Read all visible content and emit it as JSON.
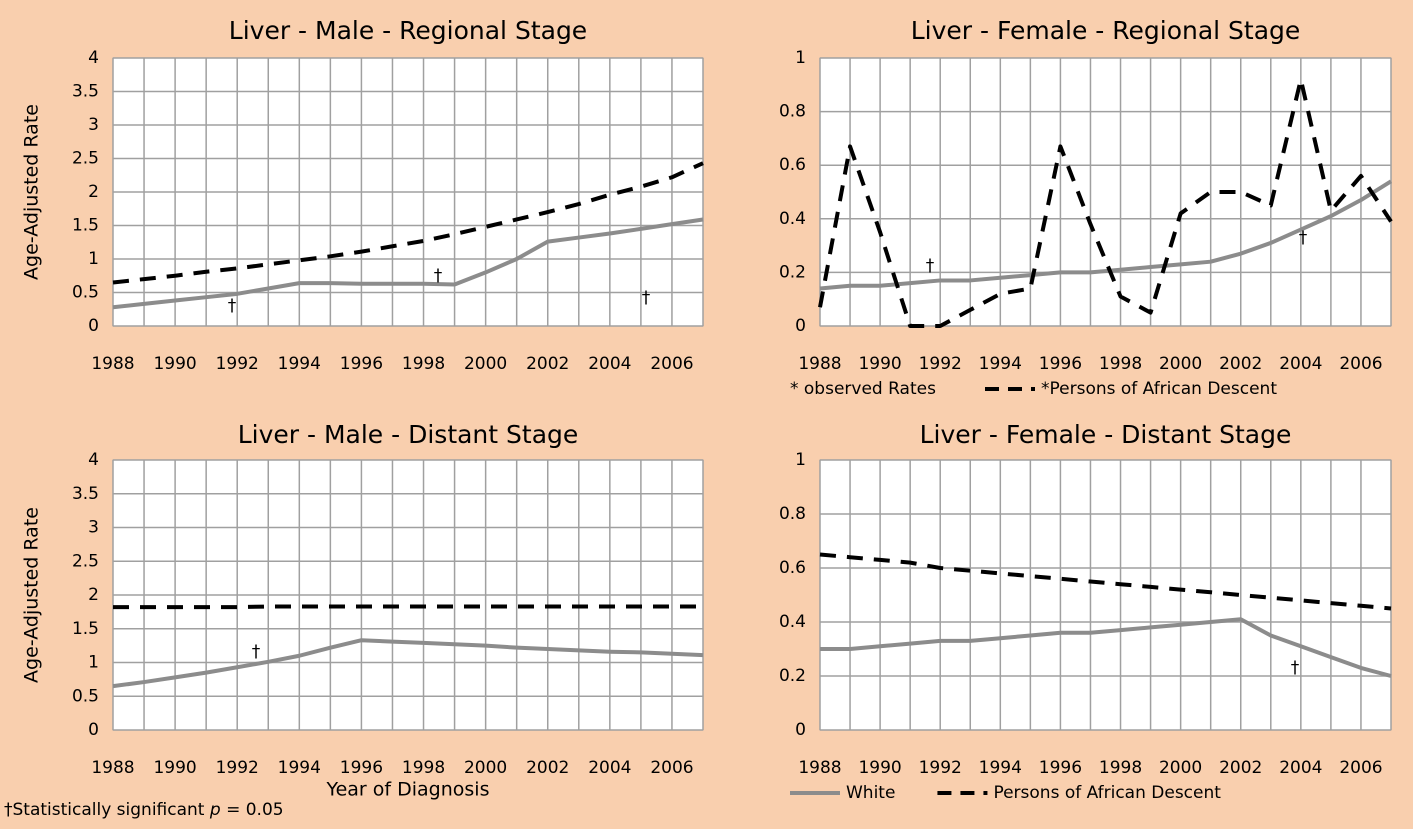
{
  "chart_data": [
    {
      "type": "line",
      "title": "Liver - Male - Regional Stage",
      "ylabel": "Age-Adjusted Rate",
      "x": [
        1988,
        1989,
        1990,
        1991,
        1992,
        1993,
        1994,
        1995,
        1996,
        1997,
        1998,
        1999,
        2000,
        2001,
        2002,
        2003,
        2004,
        2005,
        2006,
        2007
      ],
      "xlim": [
        1988,
        2007
      ],
      "xticks": [
        1988,
        1990,
        1992,
        1994,
        1996,
        1998,
        2000,
        2002,
        2004,
        2006
      ],
      "ylim": [
        0,
        4
      ],
      "yticks": [
        0,
        0.5,
        1,
        1.5,
        2,
        2.5,
        3,
        3.5,
        4
      ],
      "grid": true,
      "series": [
        {
          "color": "#8c8c8c",
          "style": "solid",
          "values": [
            0.28,
            0.33,
            0.38,
            0.43,
            0.48,
            0.56,
            0.64,
            0.64,
            0.63,
            0.63,
            0.63,
            0.62,
            0.8,
            1.0,
            1.26,
            1.32,
            1.38,
            1.45,
            1.52,
            1.59
          ]
        },
        {
          "color": "#000000",
          "style": "dashed",
          "values": [
            0.65,
            0.7,
            0.75,
            0.81,
            0.86,
            0.92,
            0.98,
            1.04,
            1.11,
            1.19,
            1.27,
            1.37,
            1.48,
            1.59,
            1.7,
            1.82,
            1.96,
            2.08,
            2.22,
            2.43
          ]
        }
      ],
      "annotations": [
        "†",
        "†",
        "†"
      ]
    },
    {
      "type": "line",
      "title": "Liver - Female - Regional Stage",
      "x": [
        1988,
        1989,
        1990,
        1991,
        1992,
        1993,
        1994,
        1995,
        1996,
        1997,
        1998,
        1999,
        2000,
        2001,
        2002,
        2003,
        2004,
        2005,
        2006,
        2007
      ],
      "xlim": [
        1988,
        2007
      ],
      "xticks": [
        1988,
        1990,
        1992,
        1994,
        1996,
        1998,
        2000,
        2002,
        2004,
        2006
      ],
      "ylim": [
        0,
        1
      ],
      "yticks": [
        0,
        0.2,
        0.4,
        0.6,
        0.8,
        1
      ],
      "grid": true,
      "series": [
        {
          "color": "#8c8c8c",
          "style": "solid",
          "values": [
            0.14,
            0.15,
            0.15,
            0.16,
            0.17,
            0.17,
            0.18,
            0.19,
            0.2,
            0.2,
            0.21,
            0.22,
            0.23,
            0.24,
            0.27,
            0.31,
            0.36,
            0.41,
            0.47,
            0.54
          ]
        },
        {
          "name": "*Persons of African Descent",
          "color": "#000000",
          "style": "dashed",
          "values": [
            0.07,
            0.67,
            0.35,
            0.0,
            0.0,
            0.06,
            0.12,
            0.14,
            0.67,
            0.38,
            0.11,
            0.05,
            0.42,
            0.5,
            0.5,
            0.45,
            0.92,
            0.43,
            0.56,
            0.39
          ]
        }
      ],
      "legend_note": "* observed Rates",
      "annotations": [
        "†",
        "†"
      ]
    },
    {
      "type": "line",
      "title": "Liver - Male - Distant Stage",
      "ylabel": "Age-Adjusted Rate",
      "xlabel": "Year of Diagnosis",
      "x": [
        1988,
        1989,
        1990,
        1991,
        1992,
        1993,
        1994,
        1995,
        1996,
        1997,
        1998,
        1999,
        2000,
        2001,
        2002,
        2003,
        2004,
        2005,
        2006,
        2007
      ],
      "xlim": [
        1988,
        2007
      ],
      "xticks": [
        1988,
        1990,
        1992,
        1994,
        1996,
        1998,
        2000,
        2002,
        2004,
        2006
      ],
      "ylim": [
        0,
        4
      ],
      "yticks": [
        0,
        0.5,
        1,
        1.5,
        2,
        2.5,
        3,
        3.5,
        4
      ],
      "grid": true,
      "series": [
        {
          "color": "#8c8c8c",
          "style": "solid",
          "values": [
            0.65,
            0.71,
            0.78,
            0.85,
            0.93,
            1.01,
            1.1,
            1.22,
            1.33,
            1.31,
            1.29,
            1.27,
            1.25,
            1.22,
            1.2,
            1.18,
            1.16,
            1.15,
            1.13,
            1.11
          ]
        },
        {
          "color": "#000000",
          "style": "dashed",
          "values": [
            1.82,
            1.82,
            1.82,
            1.82,
            1.82,
            1.83,
            1.83,
            1.83,
            1.83,
            1.83,
            1.83,
            1.83,
            1.83,
            1.83,
            1.83,
            1.83,
            1.83,
            1.83,
            1.83,
            1.83
          ]
        }
      ],
      "annotations": [
        "†"
      ]
    },
    {
      "type": "line",
      "title": "Liver - Female - Distant Stage",
      "x": [
        1988,
        1989,
        1990,
        1991,
        1992,
        1993,
        1994,
        1995,
        1996,
        1997,
        1998,
        1999,
        2000,
        2001,
        2002,
        2003,
        2004,
        2005,
        2006,
        2007
      ],
      "xlim": [
        1988,
        2007
      ],
      "xticks": [
        1988,
        1990,
        1992,
        1994,
        1996,
        1998,
        2000,
        2002,
        2004,
        2006
      ],
      "ylim": [
        0,
        1
      ],
      "yticks": [
        0,
        0.2,
        0.4,
        0.6,
        0.8,
        1
      ],
      "grid": true,
      "series": [
        {
          "name": "White",
          "color": "#8c8c8c",
          "style": "solid",
          "values": [
            0.3,
            0.3,
            0.31,
            0.32,
            0.33,
            0.33,
            0.34,
            0.35,
            0.36,
            0.36,
            0.37,
            0.38,
            0.39,
            0.4,
            0.41,
            0.35,
            0.31,
            0.27,
            0.23,
            0.2
          ]
        },
        {
          "name": "Persons of African Descent",
          "color": "#000000",
          "style": "dashed",
          "values": [
            0.65,
            0.64,
            0.63,
            0.62,
            0.6,
            0.59,
            0.58,
            0.57,
            0.56,
            0.55,
            0.54,
            0.53,
            0.52,
            0.51,
            0.5,
            0.49,
            0.48,
            0.47,
            0.46,
            0.45
          ]
        }
      ],
      "annotations": [
        "†"
      ]
    }
  ],
  "footnote": {
    "before": "†Statistically significant ",
    "italic": "p",
    "after": " = 0.05"
  }
}
